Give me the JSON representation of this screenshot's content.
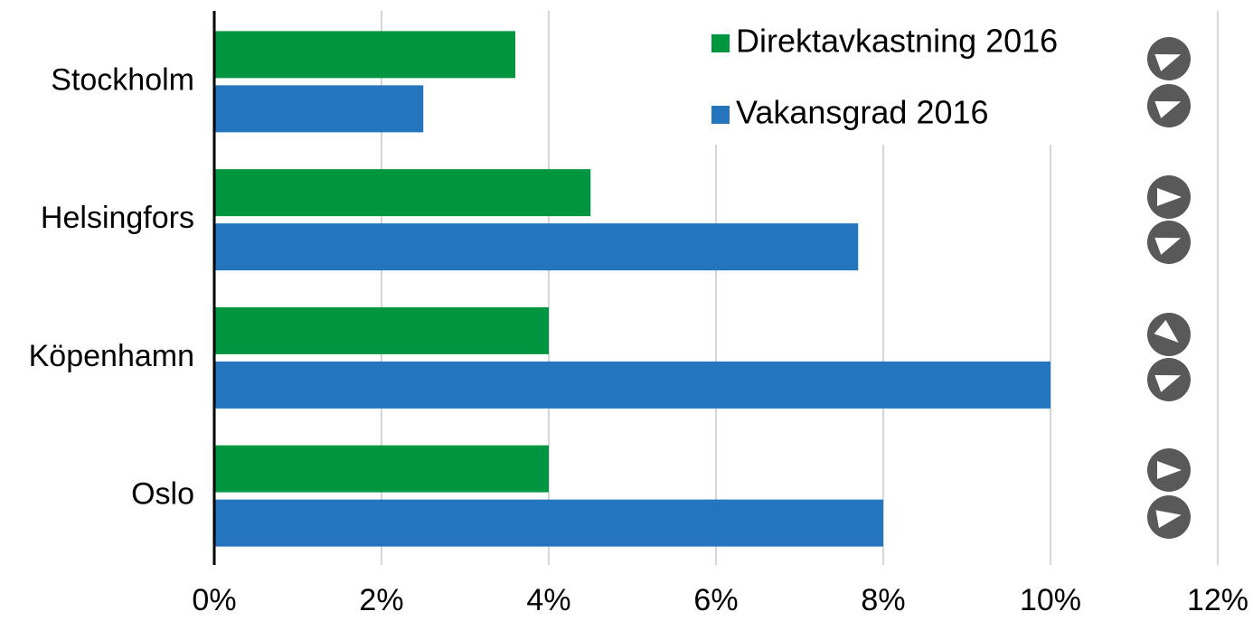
{
  "chart_data": {
    "type": "bar",
    "orientation": "horizontal",
    "categories": [
      "Stockholm",
      "Helsingfors",
      "Köpenhamn",
      "Oslo"
    ],
    "series": [
      {
        "name": "Direktavkastning 2016",
        "color": "#00963f",
        "values": [
          3.6,
          4.5,
          4.0,
          4.0
        ]
      },
      {
        "name": "Vakansgrad 2016",
        "color": "#2475be",
        "values": [
          2.5,
          7.7,
          10.0,
          8.0
        ]
      }
    ],
    "xlim": [
      0,
      12
    ],
    "xticks": [
      {
        "value": 0,
        "label": "0%"
      },
      {
        "value": 2,
        "label": "2%"
      },
      {
        "value": 4,
        "label": "4%"
      },
      {
        "value": 6,
        "label": "6%"
      },
      {
        "value": 8,
        "label": "8%"
      },
      {
        "value": 10,
        "label": "10%"
      },
      {
        "value": 12,
        "label": "12%"
      }
    ],
    "grid": true,
    "legend": "top-right"
  }
}
